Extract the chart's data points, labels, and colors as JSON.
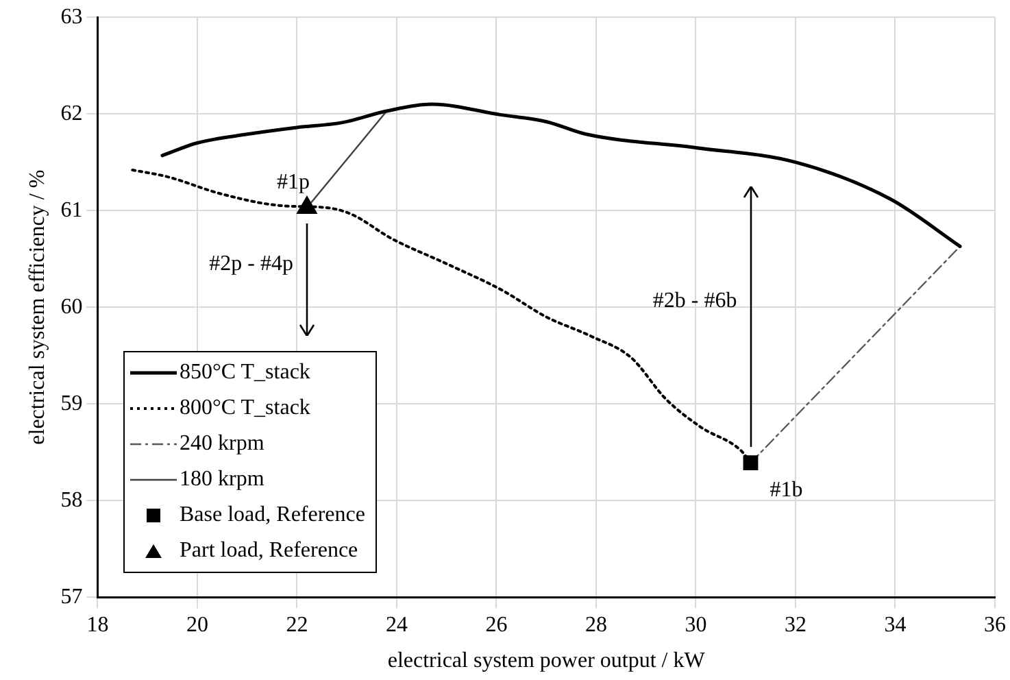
{
  "chart_data": {
    "type": "line",
    "xlabel": "electrical system power output / kW",
    "ylabel": "electrical system efficiency / %",
    "xlim": [
      18,
      36
    ],
    "xticks": [
      18,
      20,
      22,
      24,
      26,
      28,
      30,
      32,
      34,
      36
    ],
    "ylim": [
      57,
      63
    ],
    "yticks": [
      57,
      58,
      59,
      60,
      61,
      62,
      63
    ],
    "grid": true,
    "legend": "bottom left",
    "series": [
      {
        "name": "850°C T_stack",
        "color": "#000000",
        "line_style": "solid",
        "marker": "none",
        "x": [
          19.3,
          20,
          21,
          22,
          22.9,
          23.8,
          24.7,
          26.1,
          27,
          27.8,
          30,
          32,
          33.9,
          35.3
        ],
        "values": [
          61.57,
          61.7,
          61.79,
          61.86,
          61.91,
          62.03,
          62.1,
          61.99,
          61.92,
          61.79,
          61.65,
          61.5,
          61.12,
          60.63
        ]
      },
      {
        "name": "800°C T_stack",
        "color": "#000000",
        "line_style": "dotted",
        "marker": "none",
        "x": [
          18.7,
          19.4,
          20.5,
          21.7,
          22.6,
          23.1,
          23.9,
          25,
          26.1,
          27,
          27.9,
          28.7,
          29.4,
          30.1,
          30.9,
          31.1
        ],
        "values": [
          61.42,
          61.35,
          61.17,
          61.05,
          61.03,
          60.96,
          60.71,
          60.45,
          60.18,
          59.9,
          59.7,
          59.48,
          59.05,
          58.76,
          58.52,
          58.39
        ]
      },
      {
        "name": "240 krpm",
        "color": "#595959",
        "line_style": "dashed",
        "marker": "none",
        "x": [
          31.1,
          35.3
        ],
        "values": [
          58.39,
          60.63
        ]
      },
      {
        "name": "180 krpm",
        "color": "#404040",
        "line_style": "solid",
        "marker": "none",
        "x": [
          22.2,
          23.8
        ],
        "values": [
          61.03,
          62.03
        ]
      },
      {
        "name": "Base load, Reference",
        "type": "scatter",
        "color": "#000000",
        "marker": "square",
        "x": [
          31.1
        ],
        "values": [
          58.39
        ]
      },
      {
        "name": "Part load, Reference",
        "type": "scatter",
        "color": "#000000",
        "marker": "triangle",
        "x": [
          22.2
        ],
        "values": [
          61.03
        ]
      }
    ],
    "annotations": [
      {
        "text": "#1p",
        "x": 22.2,
        "y": 61.03
      },
      "#2p - #4p",
      "#2b - #6b",
      {
        "text": "#1b",
        "x": 31.1,
        "y": 58.39
      }
    ]
  }
}
